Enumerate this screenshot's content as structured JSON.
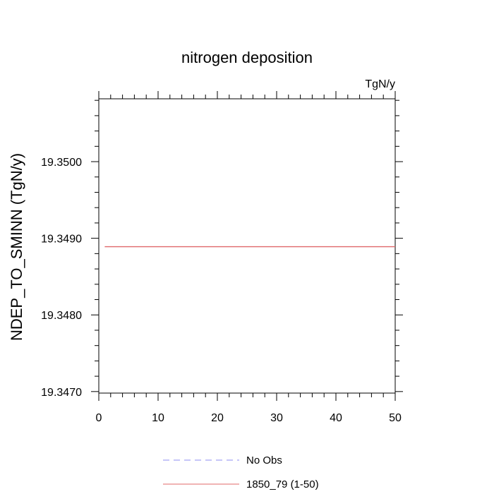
{
  "chart_data": {
    "type": "line",
    "title": "nitrogen deposition",
    "units_label": "TgN/y",
    "xlabel": "",
    "ylabel": "NDEP_TO_SMINN  (TgN/y)",
    "xlim": [
      0,
      50
    ],
    "ylim": [
      19.34698,
      19.35082
    ],
    "x_ticks": [
      0,
      10,
      20,
      30,
      40,
      50
    ],
    "x_tick_labels": [
      "0",
      "10",
      "20",
      "30",
      "40",
      "50"
    ],
    "y_ticks": [
      19.347,
      19.348,
      19.349,
      19.35
    ],
    "y_tick_labels": [
      "19.3470",
      "19.3480",
      "19.3490",
      "19.3500"
    ],
    "grid": false,
    "legend_position": "bottom",
    "series": [
      {
        "name": "No Obs",
        "color": "#8c8cf0",
        "style": "dashed",
        "x": [],
        "y": []
      },
      {
        "name": "1850_79 (1-50)",
        "color": "#e0686a",
        "style": "solid",
        "x": [
          1,
          50
        ],
        "y": [
          19.34889,
          19.34889
        ]
      }
    ]
  }
}
